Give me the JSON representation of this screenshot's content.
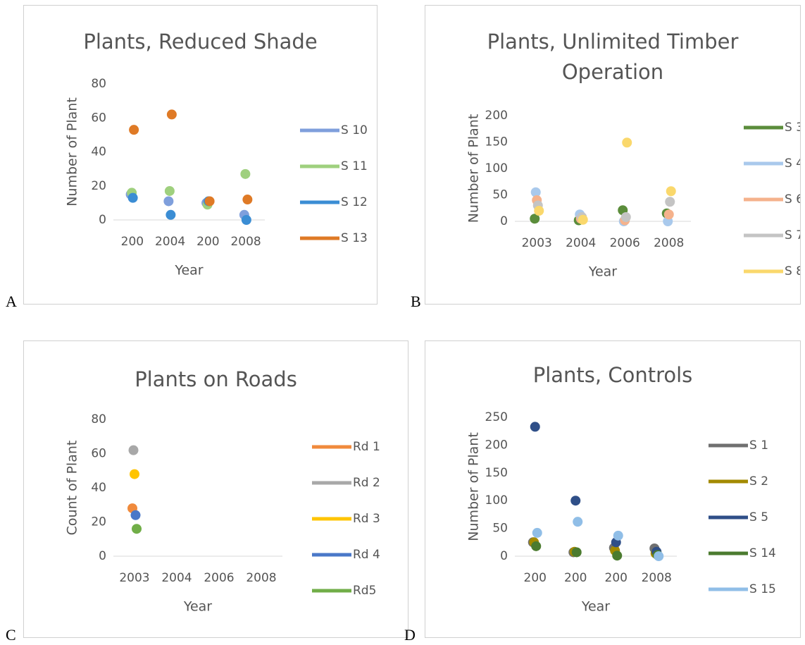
{
  "chart_data": [
    {
      "type": "scatter",
      "panel_label": "A",
      "title": "Plants, Reduced Shade",
      "x_label": "Year",
      "y_label": "Number of Plant",
      "categories": [
        "200",
        "2004",
        "200",
        "2008"
      ],
      "ylim": [
        0,
        80
      ],
      "yticks": [
        0,
        20,
        40,
        60,
        80
      ],
      "grid": false,
      "series": [
        {
          "name": "S 10",
          "color": "#7f9fdc",
          "values": [
            15,
            11,
            10,
            3
          ]
        },
        {
          "name": "S 11",
          "color": "#9fd07e",
          "values": [
            16,
            17,
            9,
            27
          ]
        },
        {
          "name": "S 12",
          "color": "#3b8dd4",
          "values": [
            13,
            3,
            11,
            0
          ]
        },
        {
          "name": "S 13",
          "color": "#df7a26",
          "values": [
            53,
            62,
            11,
            12
          ]
        }
      ]
    },
    {
      "type": "scatter",
      "panel_label": "B",
      "title": "Plants, Unlimited Timber Operation",
      "x_label": "Year",
      "y_label": "Number of Plant",
      "categories": [
        "2003",
        "2004",
        "2006",
        "2008"
      ],
      "ylim": [
        0,
        200
      ],
      "yticks": [
        0,
        50,
        100,
        150,
        200
      ],
      "grid": false,
      "series": [
        {
          "name": "S 3",
          "color": "#5b8d3b",
          "values": [
            5,
            2,
            21,
            15
          ]
        },
        {
          "name": "S 4",
          "color": "#a9c9ec",
          "values": [
            55,
            13,
            0,
            0
          ]
        },
        {
          "name": "S 6",
          "color": "#f5b28c",
          "values": [
            40,
            5,
            2,
            13
          ]
        },
        {
          "name": "S 7",
          "color": "#c4c4c4",
          "values": [
            30,
            8,
            8,
            37
          ]
        },
        {
          "name": "S 8",
          "color": "#fad86c",
          "values": [
            20,
            3,
            149,
            57
          ]
        }
      ]
    },
    {
      "type": "scatter",
      "panel_label": "C",
      "title": "Plants on Roads",
      "x_label": "Year",
      "y_label": "Count of Plant",
      "categories": [
        "2003",
        "2004",
        "2006",
        "2008"
      ],
      "ylim": [
        0,
        80
      ],
      "yticks": [
        0,
        20,
        40,
        60,
        80
      ],
      "grid": false,
      "series": [
        {
          "name": "Rd 1",
          "color": "#f08a3c",
          "values": [
            28,
            null,
            null,
            null
          ]
        },
        {
          "name": "Rd 2",
          "color": "#a8a8a8",
          "values": [
            62,
            null,
            null,
            null
          ]
        },
        {
          "name": "Rd 3",
          "color": "#ffc400",
          "values": [
            48,
            null,
            null,
            null
          ]
        },
        {
          "name": "Rd 4",
          "color": "#4a78c8",
          "values": [
            24,
            null,
            null,
            null
          ]
        },
        {
          "name": "Rd5",
          "color": "#71ae48",
          "values": [
            16,
            null,
            null,
            null
          ]
        }
      ]
    },
    {
      "type": "scatter",
      "panel_label": "D",
      "title": "Plants, Controls",
      "x_label": "Year",
      "y_label": "Number of Plant",
      "categories": [
        "200",
        "200",
        "200",
        "2008"
      ],
      "ylim": [
        0,
        250
      ],
      "yticks": [
        0,
        50,
        100,
        150,
        200,
        250
      ],
      "grid": false,
      "series": [
        {
          "name": "S 1",
          "color": "#707070",
          "values": [
            25,
            7,
            15,
            14
          ]
        },
        {
          "name": "S 2",
          "color": "#a38a00",
          "values": [
            25,
            8,
            10,
            5
          ]
        },
        {
          "name": "S 5",
          "color": "#2f4f88",
          "values": [
            233,
            100,
            25,
            8
          ]
        },
        {
          "name": "S 14",
          "color": "#4b7b2f",
          "values": [
            18,
            7,
            1,
            2
          ]
        },
        {
          "name": "S 15",
          "color": "#90bee7",
          "values": [
            42,
            62,
            37,
            0
          ]
        }
      ]
    }
  ]
}
